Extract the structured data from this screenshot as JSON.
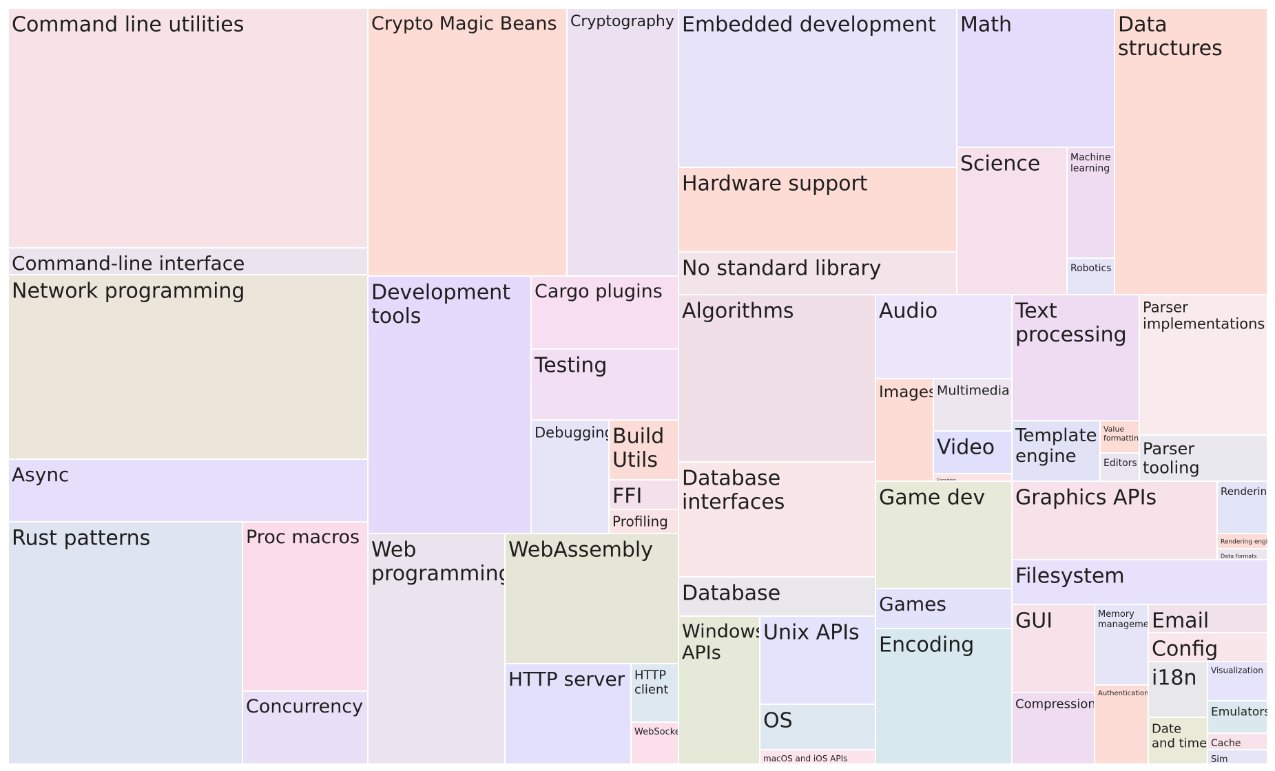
{
  "chart_data": {
    "type": "treemap",
    "title": "",
    "groups": [
      {
        "label": "Command line utilities",
        "color": "#f6e2e7"
      },
      {
        "label": "Command-line interface",
        "color": "#ebe4ee"
      },
      {
        "label": "Network programming",
        "color": "#ebe5da"
      },
      {
        "label": "Async",
        "color": "#e5dffc"
      },
      {
        "label": "Rust patterns",
        "color": "#dfe4f1"
      },
      {
        "label": "Proc macros",
        "color": "#fbdce9"
      },
      {
        "label": "Concurrency",
        "color": "#e9e0f7"
      },
      {
        "label": "Crypto Magic Beans",
        "color": "#fcdcd5"
      },
      {
        "label": "Cryptography",
        "color": "#ebe1f1"
      },
      {
        "label": "Development tools",
        "color": "#e5dafc"
      },
      {
        "label": "Cargo plugins",
        "color": "#f7def0"
      },
      {
        "label": "Testing",
        "color": "#f2dff4"
      },
      {
        "label": "Debugging",
        "color": "#e6e4f7"
      },
      {
        "label": "Build Utils",
        "color": "#fcdcd6"
      },
      {
        "label": "FFI",
        "color": "#f3e0ea"
      },
      {
        "label": "Profiling",
        "color": "#fae3e4"
      },
      {
        "label": "Web programming",
        "color": "#ebe4ee"
      },
      {
        "label": "WebAssembly",
        "color": "#e6e6d7"
      },
      {
        "label": "HTTP server",
        "color": "#e3e0fc"
      },
      {
        "label": "HTTP client",
        "color": "#dde8f1"
      },
      {
        "label": "WebSocket",
        "color": "#fbe0ec"
      },
      {
        "label": "Embedded development",
        "color": "#e7e3f9"
      },
      {
        "label": "Hardware support",
        "color": "#fddcd5"
      },
      {
        "label": "No standard library",
        "color": "#f3e4ea"
      },
      {
        "label": "Math",
        "color": "#e4dcfb"
      },
      {
        "label": "Science",
        "color": "#f6e0ea"
      },
      {
        "label": "Machine learning",
        "color": "#f0dcf0"
      },
      {
        "label": "Robotics",
        "color": "#e6e4f7"
      },
      {
        "label": "Data structures",
        "color": "#fddcd5"
      },
      {
        "label": "Algorithms",
        "color": "#f1dfe8"
      },
      {
        "label": "Database interfaces",
        "color": "#f9e6e8"
      },
      {
        "label": "Database",
        "color": "#e9e6ec"
      },
      {
        "label": "Windows APIs",
        "color": "#e6e9d7"
      },
      {
        "label": "Unix APIs",
        "color": "#e3e3fc"
      },
      {
        "label": "OS",
        "color": "#dee8f1"
      },
      {
        "label": "macOS and iOS APIs",
        "color": "#fbe4ec"
      },
      {
        "label": "Audio",
        "color": "#ebe6fa"
      },
      {
        "label": "Images",
        "color": "#fddcd5"
      },
      {
        "label": "Multimedia",
        "color": "#ede6ee"
      },
      {
        "label": "Video",
        "color": "#e1e0fc"
      },
      {
        "label": "Encoding",
        "color": "#fbe3e7"
      },
      {
        "label": "Game dev",
        "color": "#e7ead8"
      },
      {
        "label": "Games",
        "color": "#e3e2fb"
      },
      {
        "label": "Encoding",
        "color": "#d7e9ee"
      },
      {
        "label": "Text processing",
        "color": "#efdcf3"
      },
      {
        "label": "Parser implementations",
        "color": "#f9ebeb"
      },
      {
        "label": "Template engine",
        "color": "#e1e2f6"
      },
      {
        "label": "Value formatting",
        "color": "#fddcd5"
      },
      {
        "label": "Editors",
        "color": "#ebe5ef"
      },
      {
        "label": "Parser tooling",
        "color": "#e9e8ee"
      },
      {
        "label": "Graphics APIs",
        "color": "#f7e2e9"
      },
      {
        "label": "Rendering",
        "color": "#e2e4f7"
      },
      {
        "label": "Rendering engine",
        "color": "#fddcd5"
      },
      {
        "label": "Data formats",
        "color": "#ece6ef"
      },
      {
        "label": "Filesystem",
        "color": "#e7e1fb"
      },
      {
        "label": "GUI",
        "color": "#f6e2e8"
      },
      {
        "label": "Compression",
        "color": "#efdcf0"
      },
      {
        "label": "Memory management",
        "color": "#e6e4f7"
      },
      {
        "label": "Authentication",
        "color": "#fddcd5"
      },
      {
        "label": "Email",
        "color": "#f1e2ea"
      },
      {
        "label": "Config",
        "color": "#f9e6ea"
      },
      {
        "label": "i18n",
        "color": "#e8e8ea"
      },
      {
        "label": "Visualization",
        "color": "#e5e4fb"
      },
      {
        "label": "Emulators",
        "color": "#dbe9ee"
      },
      {
        "label": "Date and time",
        "color": "#e9ead8"
      },
      {
        "label": "Cache",
        "color": "#f9e3ea"
      },
      {
        "label": "Sim",
        "color": "#e6e4f7"
      }
    ]
  }
}
